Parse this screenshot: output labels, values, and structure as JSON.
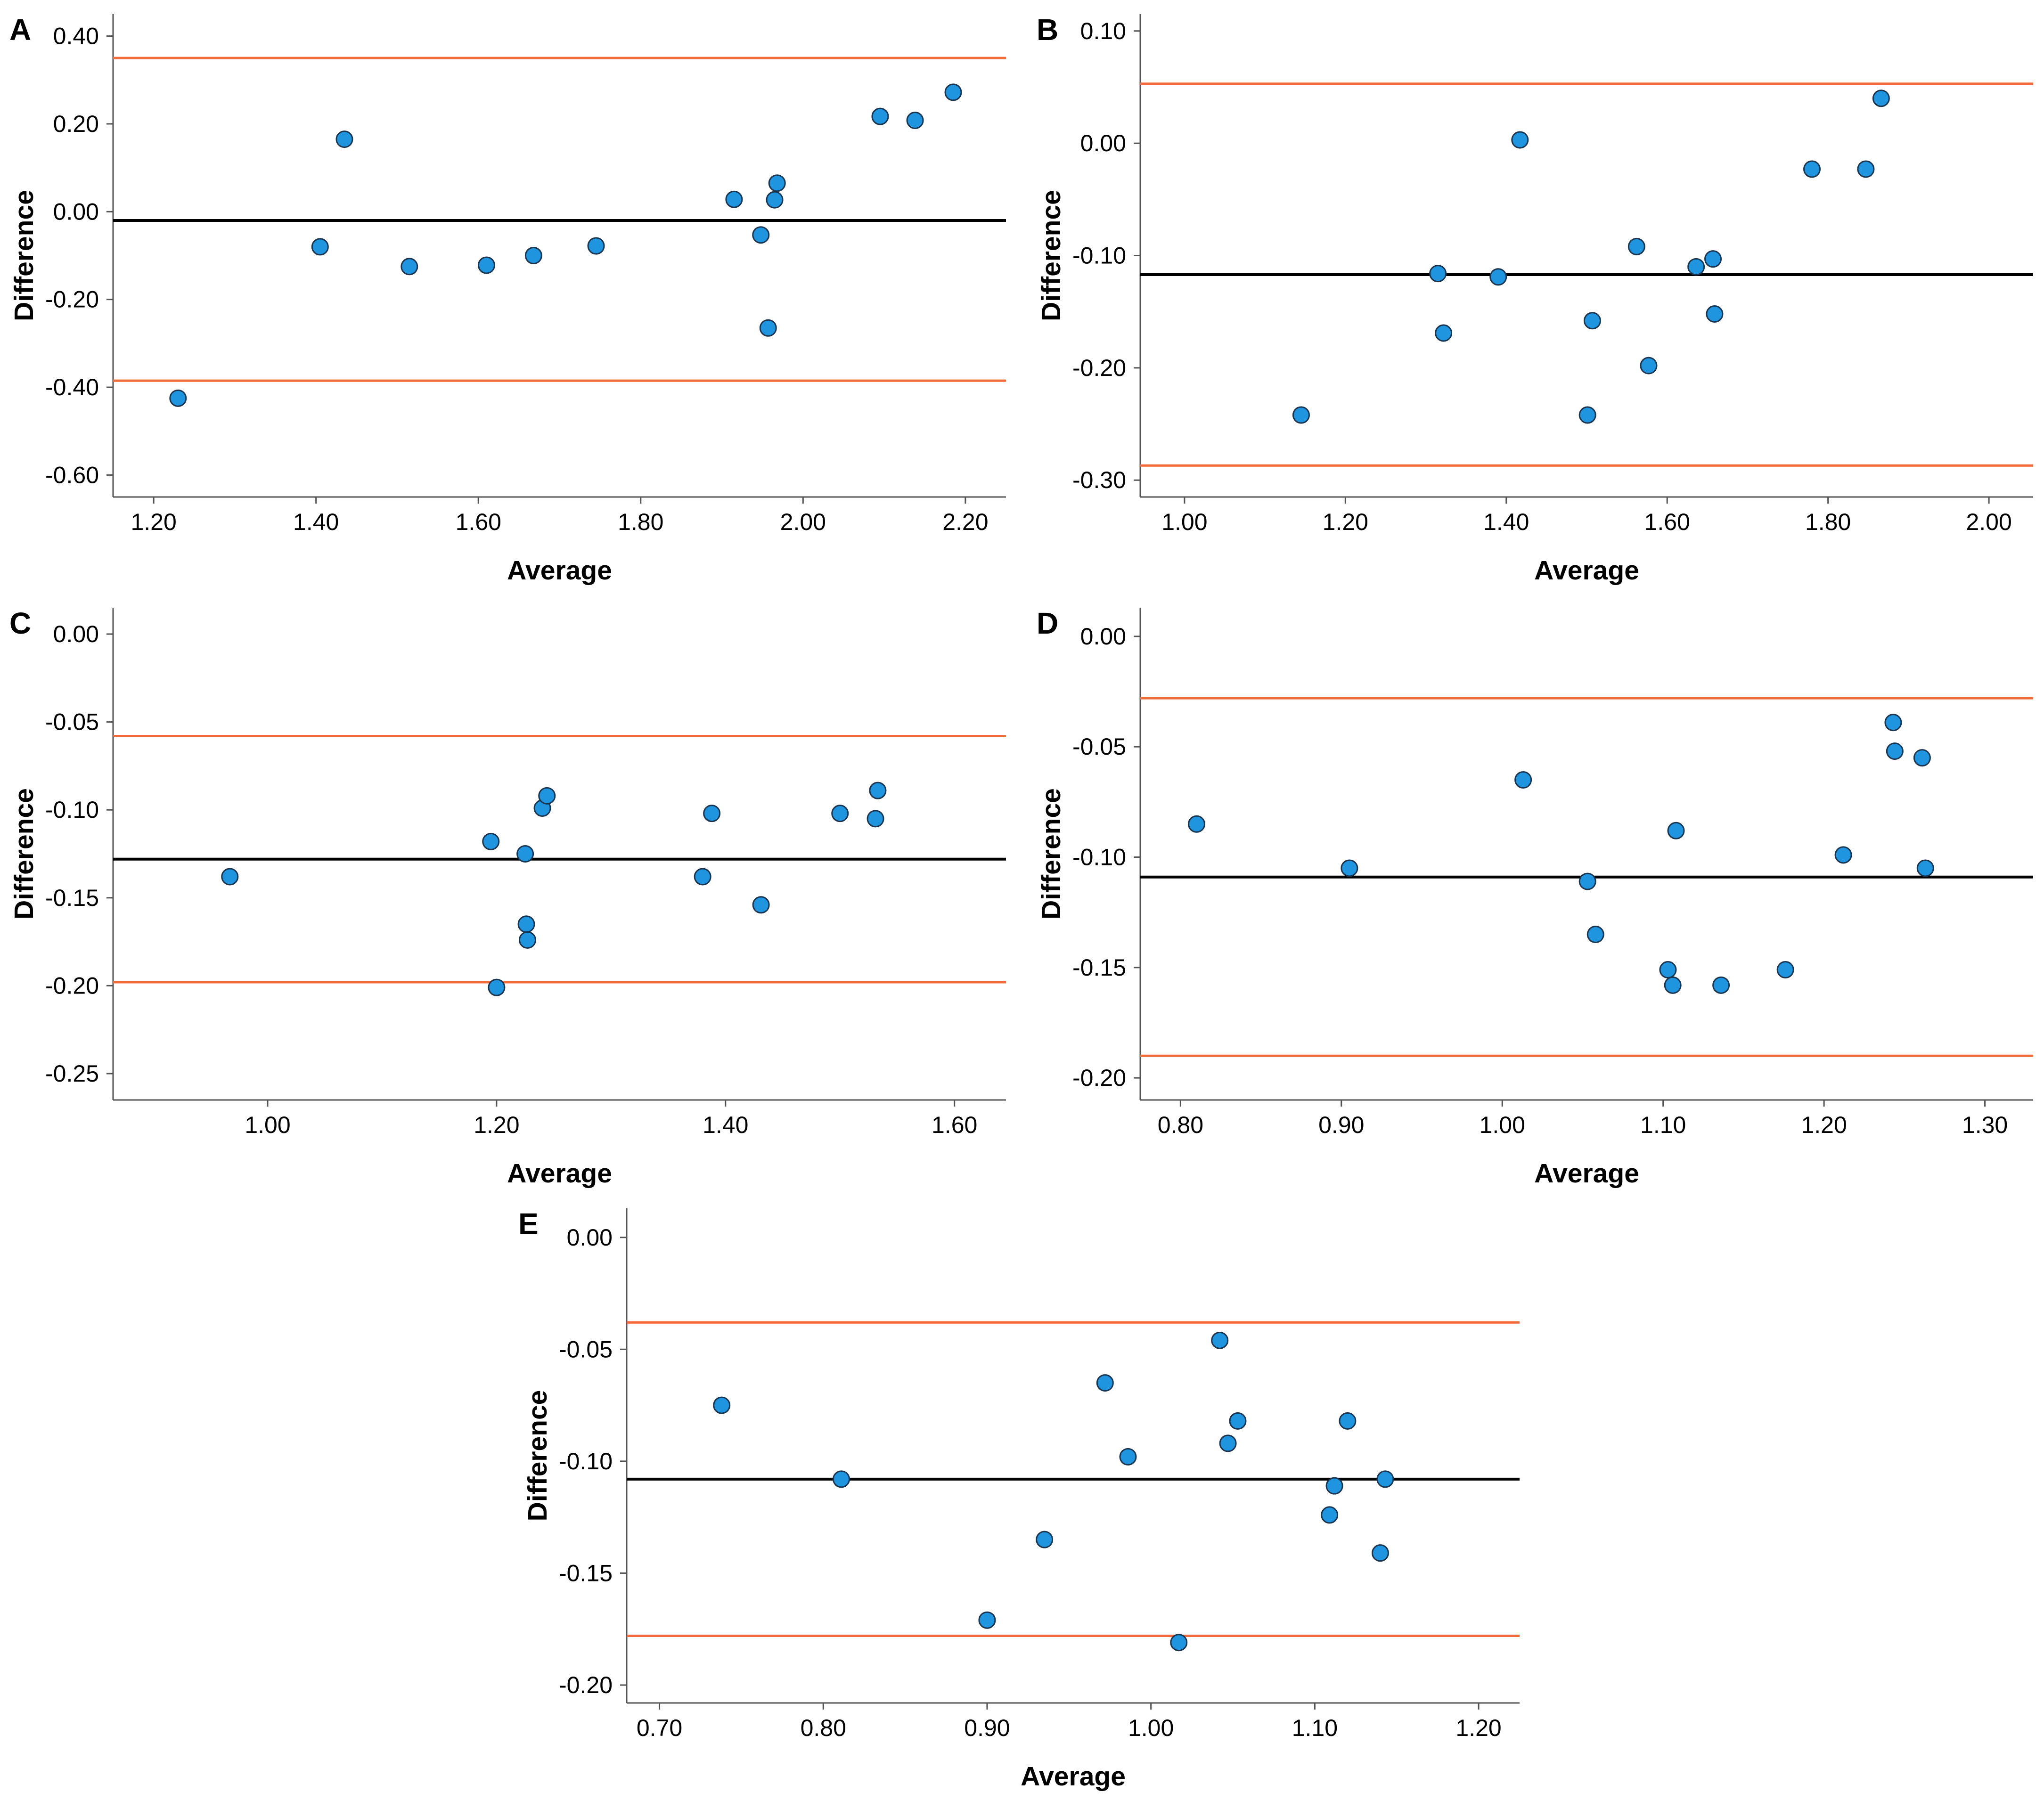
{
  "figure": {
    "description_labels": "Bland-Altman plots, panels A-E"
  },
  "colors": {
    "mean_line": "#000000",
    "limit_line": "#f26b3a",
    "point_fill": "#1f95e0",
    "point_stroke": "#1a3550",
    "axis": "#555555"
  },
  "chart_data": [
    {
      "panel": "A",
      "type": "scatter",
      "xlabel": "Average",
      "ylabel": "Difference",
      "xlim": [
        1.15,
        2.25
      ],
      "ylim": [
        -0.65,
        0.45
      ],
      "xticks": [
        1.2,
        1.4,
        1.6,
        1.8,
        2.0,
        2.2
      ],
      "yticks": [
        0.4,
        0.2,
        0.0,
        -0.2,
        -0.4,
        -0.6
      ],
      "xtick_labels": [
        "1.20",
        "1.40",
        "1.60",
        "1.80",
        "2.00",
        "2.20"
      ],
      "ytick_labels": [
        "0.40",
        "0.20",
        "0.00",
        "-0.20",
        "-0.40",
        "-0.60"
      ],
      "mean_line": -0.02,
      "upper_limit": 0.35,
      "lower_limit": -0.385,
      "points": [
        [
          1.23,
          -0.425
        ],
        [
          1.405,
          -0.08
        ],
        [
          1.435,
          0.165
        ],
        [
          1.515,
          -0.125
        ],
        [
          1.61,
          -0.122
        ],
        [
          1.668,
          -0.1
        ],
        [
          1.745,
          -0.078
        ],
        [
          1.915,
          0.028
        ],
        [
          1.948,
          -0.053
        ],
        [
          1.957,
          -0.265
        ],
        [
          1.965,
          0.027
        ],
        [
          1.968,
          0.065
        ],
        [
          2.095,
          0.217
        ],
        [
          2.138,
          0.208
        ],
        [
          2.185,
          0.272
        ]
      ]
    },
    {
      "panel": "B",
      "type": "scatter",
      "xlabel": "Average",
      "ylabel": "Difference",
      "xlim": [
        0.945,
        2.055
      ],
      "ylim": [
        -0.315,
        0.115
      ],
      "xticks": [
        1.0,
        1.2,
        1.4,
        1.6,
        1.8,
        2.0
      ],
      "yticks": [
        0.1,
        0.0,
        -0.1,
        -0.2,
        -0.3
      ],
      "xtick_labels": [
        "1.00",
        "1.20",
        "1.40",
        "1.60",
        "1.80",
        "2.00"
      ],
      "ytick_labels": [
        "0.10",
        "0.00",
        "-0.10",
        "-0.20",
        "-0.30"
      ],
      "mean_line": -0.117,
      "upper_limit": 0.053,
      "lower_limit": -0.287,
      "points": [
        [
          1.145,
          -0.242
        ],
        [
          1.315,
          -0.116
        ],
        [
          1.322,
          -0.169
        ],
        [
          1.39,
          -0.119
        ],
        [
          1.417,
          0.003
        ],
        [
          1.501,
          -0.242
        ],
        [
          1.507,
          -0.158
        ],
        [
          1.562,
          -0.092
        ],
        [
          1.577,
          -0.198
        ],
        [
          1.636,
          -0.11
        ],
        [
          1.657,
          -0.103
        ],
        [
          1.659,
          -0.152
        ],
        [
          1.78,
          -0.023
        ],
        [
          1.847,
          -0.023
        ],
        [
          1.866,
          0.04
        ]
      ]
    },
    {
      "panel": "C",
      "type": "scatter",
      "xlabel": "Average",
      "ylabel": "Difference",
      "xlim": [
        0.865,
        1.645
      ],
      "ylim": [
        -0.265,
        0.015
      ],
      "xticks": [
        1.0,
        1.2,
        1.4,
        1.6
      ],
      "yticks": [
        0.0,
        -0.05,
        -0.1,
        -0.15,
        -0.2,
        -0.25
      ],
      "xtick_labels": [
        "1.00",
        "1.20",
        "1.40",
        "1.60"
      ],
      "ytick_labels": [
        "0.00",
        "-0.05",
        "-0.10",
        "-0.15",
        "-0.20",
        "-0.25"
      ],
      "mean_line": -0.128,
      "upper_limit": -0.058,
      "lower_limit": -0.198,
      "points": [
        [
          0.967,
          -0.138
        ],
        [
          1.195,
          -0.118
        ],
        [
          1.2,
          -0.201
        ],
        [
          1.225,
          -0.125
        ],
        [
          1.226,
          -0.165
        ],
        [
          1.227,
          -0.174
        ],
        [
          1.24,
          -0.099
        ],
        [
          1.244,
          -0.092
        ],
        [
          1.38,
          -0.138
        ],
        [
          1.388,
          -0.102
        ],
        [
          1.431,
          -0.154
        ],
        [
          1.5,
          -0.102
        ],
        [
          1.531,
          -0.105
        ],
        [
          1.533,
          -0.089
        ]
      ]
    },
    {
      "panel": "D",
      "type": "scatter",
      "xlabel": "Average",
      "ylabel": "Difference",
      "xlim": [
        0.775,
        1.33
      ],
      "ylim": [
        -0.21,
        0.013
      ],
      "xticks": [
        0.8,
        0.9,
        1.0,
        1.1,
        1.2,
        1.3
      ],
      "yticks": [
        0.0,
        -0.05,
        -0.1,
        -0.15,
        -0.2
      ],
      "xtick_labels": [
        "0.80",
        "0.90",
        "1.00",
        "1.10",
        "1.20",
        "1.30"
      ],
      "ytick_labels": [
        "0.00",
        "-0.05",
        "-0.10",
        "-0.15",
        "-0.20"
      ],
      "mean_line": -0.109,
      "upper_limit": -0.028,
      "lower_limit": -0.19,
      "points": [
        [
          0.81,
          -0.085
        ],
        [
          0.905,
          -0.105
        ],
        [
          1.013,
          -0.065
        ],
        [
          1.053,
          -0.111
        ],
        [
          1.058,
          -0.135
        ],
        [
          1.103,
          -0.151
        ],
        [
          1.106,
          -0.158
        ],
        [
          1.108,
          -0.088
        ],
        [
          1.136,
          -0.158
        ],
        [
          1.176,
          -0.151
        ],
        [
          1.212,
          -0.099
        ],
        [
          1.243,
          -0.039
        ],
        [
          1.244,
          -0.052
        ],
        [
          1.261,
          -0.055
        ],
        [
          1.263,
          -0.105
        ]
      ]
    },
    {
      "panel": "E",
      "type": "scatter",
      "xlabel": "Average",
      "ylabel": "Difference",
      "xlim": [
        0.68,
        1.225
      ],
      "ylim": [
        -0.208,
        0.013
      ],
      "xticks": [
        0.7,
        0.8,
        0.9,
        1.0,
        1.1,
        1.2
      ],
      "yticks": [
        0.0,
        -0.05,
        -0.1,
        -0.15,
        -0.2
      ],
      "xtick_labels": [
        "0.70",
        "0.80",
        "0.90",
        "1.00",
        "1.10",
        "1.20"
      ],
      "ytick_labels": [
        "0.00",
        "-0.05",
        "-0.10",
        "-0.15",
        "-0.20"
      ],
      "mean_line": -0.108,
      "upper_limit": -0.038,
      "lower_limit": -0.178,
      "points": [
        [
          0.738,
          -0.075
        ],
        [
          0.811,
          -0.108
        ],
        [
          0.9,
          -0.171
        ],
        [
          0.935,
          -0.135
        ],
        [
          0.972,
          -0.065
        ],
        [
          0.986,
          -0.098
        ],
        [
          1.017,
          -0.181
        ],
        [
          1.042,
          -0.046
        ],
        [
          1.047,
          -0.092
        ],
        [
          1.053,
          -0.082
        ],
        [
          1.109,
          -0.124
        ],
        [
          1.112,
          -0.111
        ],
        [
          1.12,
          -0.082
        ],
        [
          1.14,
          -0.141
        ],
        [
          1.143,
          -0.108
        ]
      ]
    }
  ]
}
